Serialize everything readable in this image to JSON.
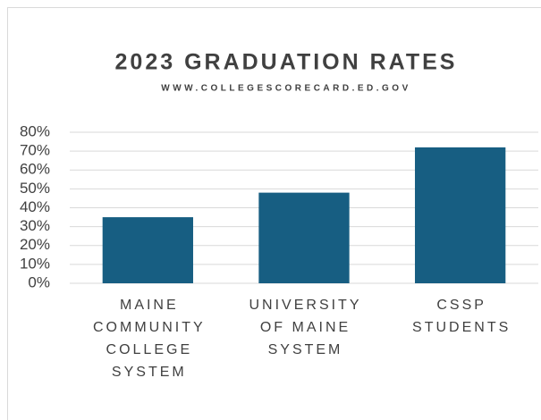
{
  "chart_data": {
    "type": "bar",
    "title": "2023 GRADUATION RATES",
    "subtitle": "WWW.COLLEGESCORECARD.ED.GOV",
    "categories": [
      "MAINE COMMUNITY COLLEGE SYSTEM",
      "UNIVERSITY OF MAINE SYSTEM",
      "CSSP STUDENTS"
    ],
    "values": [
      35,
      48,
      72
    ],
    "color": "#175e82",
    "ylim": [
      0,
      80
    ],
    "yticks": [
      {
        "value": 0,
        "label": "0%"
      },
      {
        "value": 10,
        "label": "10%"
      },
      {
        "value": 20,
        "label": "20%"
      },
      {
        "value": 30,
        "label": "30%"
      },
      {
        "value": 40,
        "label": "40%"
      },
      {
        "value": 50,
        "label": "50%"
      },
      {
        "value": 60,
        "label": "60%"
      },
      {
        "value": 70,
        "label": "70%"
      },
      {
        "value": 80,
        "label": "80%"
      }
    ],
    "grid": true
  }
}
